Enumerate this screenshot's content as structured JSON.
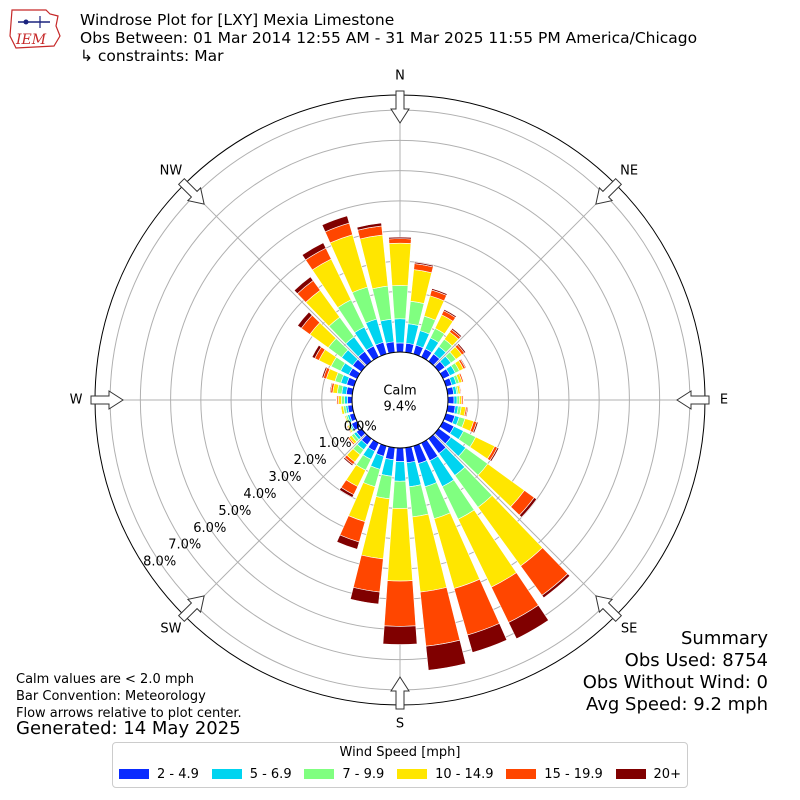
{
  "header": {
    "logo_text": "IEM",
    "title": "Windrose Plot for [LXY] Mexia Limestone",
    "subtitle": "Obs Between: 01 Mar 2014 12:55 AM - 31 Mar 2025 11:55 PM America/Chicago",
    "constraints": "↳ constraints: Mar"
  },
  "summary": {
    "heading": "Summary",
    "obs_used": "Obs Used: 8754",
    "obs_without_wind": "Obs Without Wind: 0",
    "avg_speed": "Avg Speed: 9.2 mph"
  },
  "notes": {
    "calm_note": "Calm values are < 2.0 mph",
    "bar_convention": "Bar Convention: Meteorology",
    "flow_arrows": "Flow arrows relative to plot center.",
    "generated": "Generated: 14 May 2025"
  },
  "legend": {
    "title": "Wind Speed [mph]",
    "items": [
      {
        "label": "2 - 4.9",
        "color": "#0a2bff"
      },
      {
        "label": "5 - 6.9",
        "color": "#00d4f0"
      },
      {
        "label": "7 - 9.9",
        "color": "#80ff80"
      },
      {
        "label": "10 - 14.9",
        "color": "#ffe600"
      },
      {
        "label": "15 - 19.9",
        "color": "#ff4600"
      },
      {
        "label": "20+",
        "color": "#800000"
      }
    ]
  },
  "chart_data": {
    "type": "windrose",
    "calm_label": "Calm",
    "calm_percent": "9.4%",
    "radial_ticks": [
      "0.0%",
      "1.0%",
      "2.0%",
      "3.0%",
      "4.0%",
      "5.0%",
      "6.0%",
      "7.0%",
      "8.0%"
    ],
    "radial_range": [
      0,
      8.5
    ],
    "directions": [
      "N",
      "NE",
      "E",
      "SE",
      "S",
      "SW",
      "W",
      "NW"
    ],
    "sector_degrees": [
      0,
      10,
      20,
      30,
      40,
      50,
      60,
      70,
      80,
      90,
      100,
      110,
      120,
      130,
      140,
      150,
      160,
      170,
      180,
      190,
      200,
      210,
      220,
      230,
      240,
      250,
      260,
      270,
      280,
      290,
      300,
      310,
      320,
      330,
      340,
      350
    ],
    "speed_bins": [
      "2 - 4.9",
      "5 - 6.9",
      "7 - 9.9",
      "10 - 14.9",
      "15 - 19.9",
      "20+"
    ],
    "cumulative_percent": [
      [
        0.3,
        1.1,
        2.2,
        3.6,
        3.75,
        3.8
      ],
      [
        0.3,
        0.95,
        1.7,
        2.75,
        2.95,
        3.0
      ],
      [
        0.3,
        0.8,
        1.3,
        2.0,
        2.2,
        2.25
      ],
      [
        0.3,
        0.7,
        1.05,
        1.55,
        1.7,
        1.75
      ],
      [
        0.3,
        0.6,
        0.9,
        1.2,
        1.3,
        1.35
      ],
      [
        0.25,
        0.5,
        0.7,
        0.95,
        1.05,
        1.1
      ],
      [
        0.25,
        0.45,
        0.6,
        0.75,
        0.82,
        0.85
      ],
      [
        0.2,
        0.35,
        0.45,
        0.55,
        0.6,
        0.62
      ],
      [
        0.2,
        0.3,
        0.35,
        0.42,
        0.45,
        0.46
      ],
      [
        0.2,
        0.3,
        0.38,
        0.45,
        0.5,
        0.52
      ],
      [
        0.25,
        0.35,
        0.45,
        0.6,
        0.65,
        0.68
      ],
      [
        0.3,
        0.45,
        0.65,
        0.95,
        1.05,
        1.1
      ],
      [
        0.4,
        0.75,
        1.2,
        1.9,
        2.0,
        2.05
      ],
      [
        0.5,
        1.1,
        2.0,
        3.5,
        3.9,
        4.0
      ],
      [
        0.6,
        1.5,
        2.8,
        5.2,
        6.4,
        6.5
      ],
      [
        0.65,
        1.6,
        2.8,
        5.3,
        6.6,
        7.2
      ],
      [
        0.6,
        1.4,
        2.5,
        4.9,
        6.5,
        7.1
      ],
      [
        0.5,
        1.3,
        2.3,
        4.8,
        6.6,
        7.4
      ],
      [
        0.45,
        1.1,
        2.0,
        4.4,
        5.9,
        6.5
      ],
      [
        0.4,
        0.95,
        1.7,
        3.7,
        4.8,
        5.2
      ],
      [
        0.35,
        0.8,
        1.4,
        2.6,
        3.3,
        3.55
      ],
      [
        0.3,
        0.6,
        1.0,
        1.6,
        1.9,
        2.0
      ],
      [
        0.25,
        0.45,
        0.65,
        0.95,
        1.05,
        1.1
      ],
      [
        0.2,
        0.3,
        0.4,
        0.5,
        0.55,
        0.57
      ],
      [
        0.2,
        0.25,
        0.3,
        0.35,
        0.38,
        0.4
      ],
      [
        0.15,
        0.22,
        0.28,
        0.32,
        0.34,
        0.35
      ],
      [
        0.15,
        0.22,
        0.3,
        0.38,
        0.4,
        0.42
      ],
      [
        0.15,
        0.25,
        0.35,
        0.45,
        0.5,
        0.52
      ],
      [
        0.2,
        0.35,
        0.5,
        0.65,
        0.72,
        0.75
      ],
      [
        0.25,
        0.45,
        0.65,
        0.95,
        1.05,
        1.1
      ],
      [
        0.3,
        0.6,
        0.95,
        1.4,
        1.55,
        1.65
      ],
      [
        0.35,
        0.8,
        1.35,
        2.1,
        2.45,
        2.6
      ],
      [
        0.4,
        1.0,
        1.8,
        2.9,
        3.3,
        3.45
      ],
      [
        0.4,
        1.1,
        2.1,
        3.6,
        4.0,
        4.2
      ],
      [
        0.4,
        1.2,
        2.3,
        4.1,
        4.5,
        4.75
      ],
      [
        0.35,
        1.1,
        2.2,
        3.9,
        4.2,
        4.3
      ]
    ],
    "summary_obs_used": 8754,
    "summary_obs_without_wind": 0,
    "summary_avg_speed_mph": 9.2
  }
}
